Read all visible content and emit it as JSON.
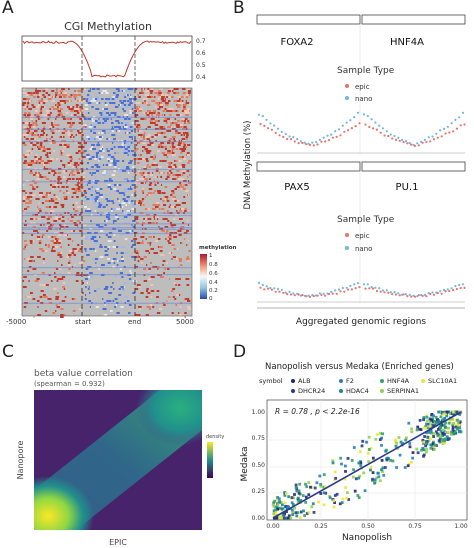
{
  "panels": {
    "a": {
      "letter": "A",
      "title": "CGI Methylation",
      "profile_ticks": [
        "0.7",
        "0.6",
        "0.5",
        "0.4"
      ],
      "x_ticks": [
        "-5000",
        "start",
        "end",
        "5000"
      ],
      "legend_title": "methylation",
      "legend_ticks": [
        "1",
        "0.8",
        "0.6",
        "0.4",
        "0.2",
        "0"
      ],
      "colors": {
        "high": "#c0392b",
        "mid": "#f4f4f4",
        "low": "#3a5fcd",
        "na": "#bdbdbd"
      }
    },
    "b": {
      "letter": "B",
      "ylabel": "DNA Methylation (%)",
      "xlabel": "Aggregated genomic regions",
      "facets": [
        "FOXA2",
        "HNF4A",
        "PAX5",
        "PU.1"
      ],
      "legend_title": "Sample Type",
      "legend_items": [
        "epic",
        "nano"
      ],
      "colors": {
        "epic": "#e8736c",
        "nano": "#6fb7e0"
      }
    },
    "c": {
      "letter": "C",
      "title": "beta value correlation",
      "subtitle": "(spearman = 0.932)",
      "xlabel": "EPIC",
      "ylabel": "Nanopore",
      "legend_title": "density",
      "colors": {
        "low": "#440154",
        "mid": "#21908c",
        "high": "#fde725"
      }
    },
    "d": {
      "letter": "D",
      "title": "Nanopolish versus Medaka (Enriched genes)",
      "legend_label": "symbol",
      "legend_items": [
        {
          "name": "ALB",
          "color": "#1f2a6b"
        },
        {
          "name": "F2",
          "color": "#2c7fb8"
        },
        {
          "name": "HNF4A",
          "color": "#35a06a"
        },
        {
          "name": "SLC10A1",
          "color": "#f0e442"
        },
        {
          "name": "DHCR24",
          "color": "#283a8f"
        },
        {
          "name": "HDAC4",
          "color": "#1b8a8a"
        },
        {
          "name": "SERPINA1",
          "color": "#8fd14f"
        }
      ],
      "annotation": "R = 0.78 , p < 2.2e-16",
      "xlabel": "Nanopolish",
      "ylabel": "Medaka",
      "x_ticks": [
        "0.00",
        "0.25",
        "0.50",
        "0.75",
        "1.00"
      ],
      "y_ticks": [
        "0.00",
        "0.25",
        "0.50",
        "0.75",
        "1.00"
      ],
      "fit_color": "#2b3a8c"
    }
  }
}
